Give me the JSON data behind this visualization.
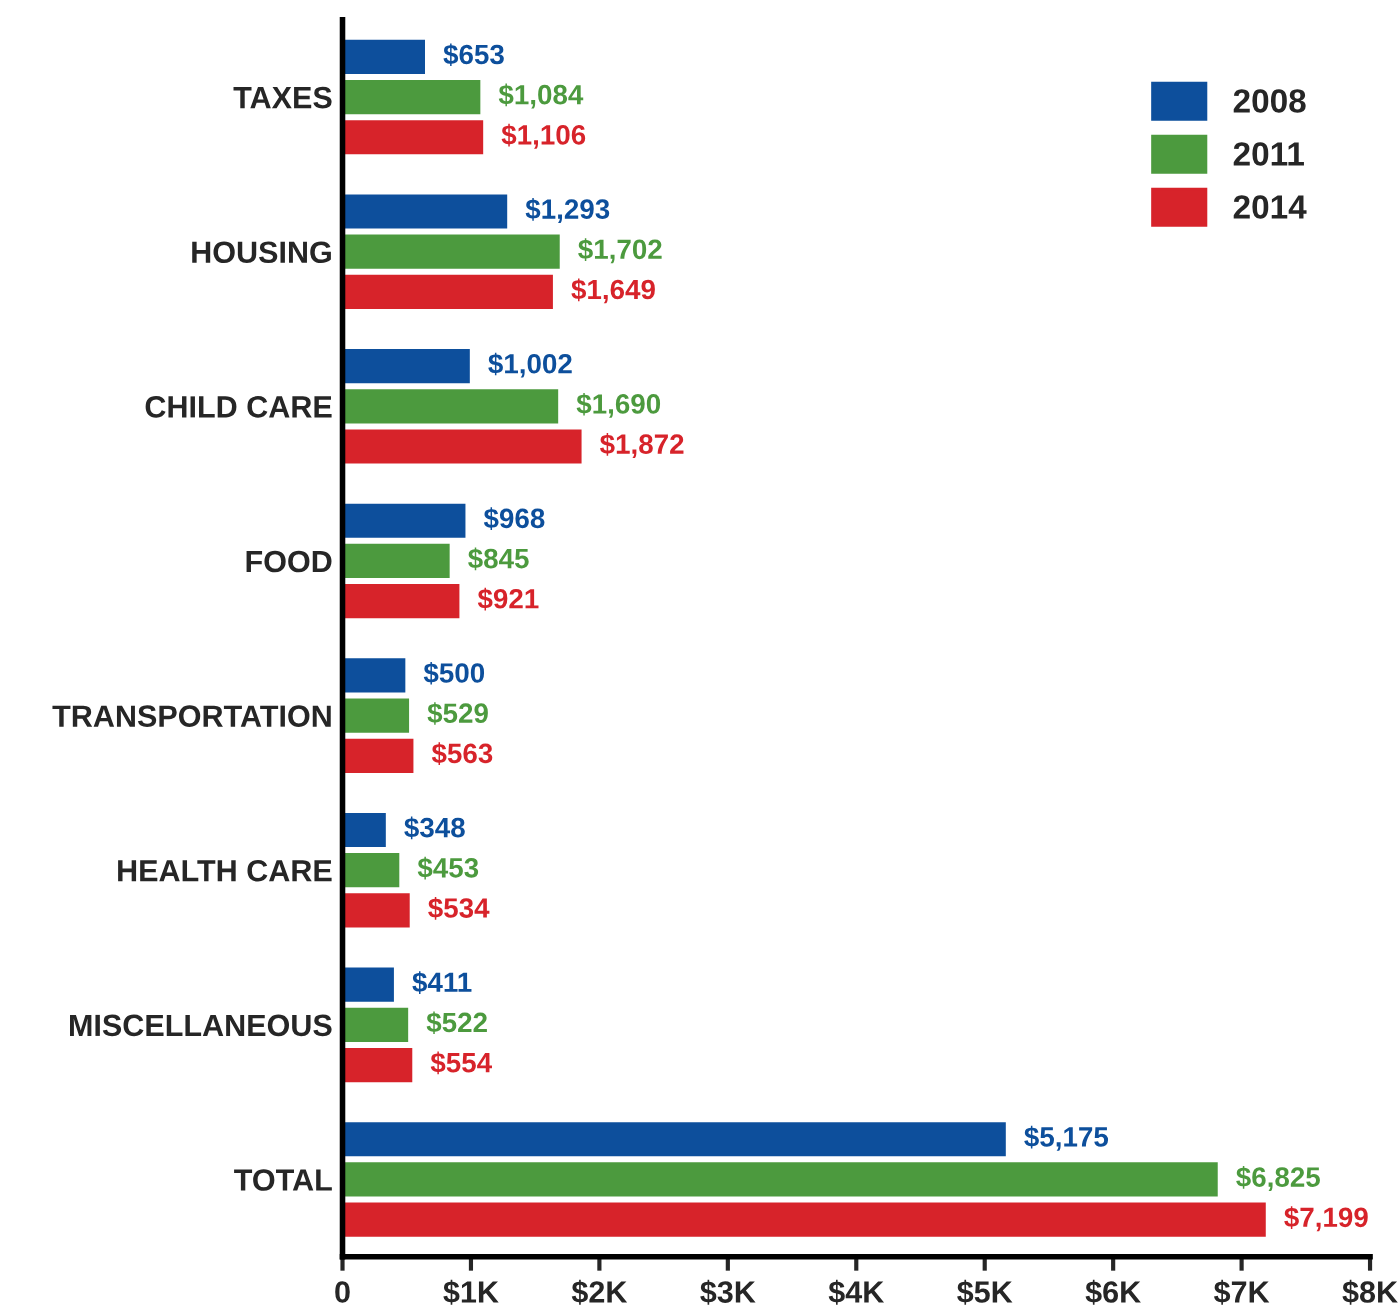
{
  "chart_data": {
    "type": "bar",
    "orientation": "horizontal",
    "categories": [
      "TAXES",
      "HOUSING",
      "CHILD CARE",
      "FOOD",
      "TRANSPORTATION",
      "HEALTH CARE",
      "MISCELLANEOUS",
      "TOTAL"
    ],
    "series": [
      {
        "name": "2008",
        "color": "#0d4f9c",
        "values": [
          653,
          1293,
          1002,
          968,
          500,
          348,
          411,
          5175
        ],
        "value_labels": [
          "$653",
          "$1,293",
          "$1,002",
          "$968",
          "$500",
          "$348",
          "$411",
          "$5,175"
        ]
      },
      {
        "name": "2011",
        "color": "#4c9a3e",
        "values": [
          1084,
          1702,
          1690,
          845,
          529,
          453,
          522,
          6825
        ],
        "value_labels": [
          "$1,084",
          "$1,702",
          "$1,690",
          "$845",
          "$529",
          "$453",
          "$522",
          "$6,825"
        ]
      },
      {
        "name": "2014",
        "color": "#d7232a",
        "values": [
          1106,
          1649,
          1872,
          921,
          563,
          534,
          554,
          7199
        ],
        "value_labels": [
          "$1,106",
          "$1,649",
          "$1,872",
          "$921",
          "$563",
          "$534",
          "$554",
          "$7,199"
        ]
      }
    ],
    "xlim": [
      0,
      8000
    ],
    "xticks": [
      0,
      {
        "value": 1000,
        "label": "$1K"
      },
      {
        "value": 2000,
        "label": "$2K"
      },
      {
        "value": 3000,
        "label": "$3K"
      },
      {
        "value": 4000,
        "label": "$4K"
      },
      {
        "value": 5000,
        "label": "$5K"
      },
      {
        "value": 6000,
        "label": "$6K"
      },
      {
        "value": 7000,
        "label": "$7K"
      },
      {
        "value": 8000,
        "label": "$8K"
      }
    ],
    "legend": "top right",
    "grid": false
  }
}
